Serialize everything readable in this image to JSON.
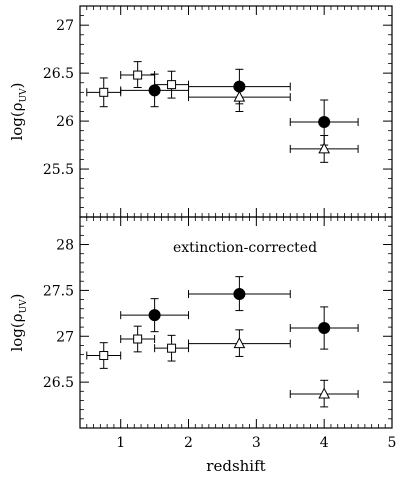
{
  "chart_data": [
    {
      "type": "scatter",
      "title": "",
      "xlabel": "",
      "ylabel": "log(ρ_UV)",
      "ylabel_main": "log(ρ",
      "ylabel_sub": "UV",
      "ylabel_close": ")",
      "xlim": [
        0.4,
        5.0
      ],
      "ylim": [
        25.0,
        27.2
      ],
      "yticks": [
        25.5,
        26,
        26.5,
        27
      ],
      "ytick_labels": [
        "25.5",
        "26",
        "26.5",
        "27"
      ],
      "annotation": "",
      "series": [
        {
          "marker": "filled-circle",
          "points": [
            {
              "x": 1.5,
              "y": 26.32,
              "xlo": 1.0,
              "xhi": 2.0,
              "ylo": 26.15,
              "yhi": 26.49
            },
            {
              "x": 2.75,
              "y": 26.36,
              "xlo": 2.0,
              "xhi": 3.5,
              "ylo": 26.18,
              "yhi": 26.54
            },
            {
              "x": 4.0,
              "y": 25.99,
              "xlo": 3.5,
              "xhi": 4.5,
              "ylo": 25.75,
              "yhi": 26.22
            }
          ]
        },
        {
          "marker": "open-square",
          "points": [
            {
              "x": 0.75,
              "y": 26.3,
              "xlo": 0.5,
              "xhi": 1.0,
              "ylo": 26.15,
              "yhi": 26.45
            },
            {
              "x": 1.25,
              "y": 26.48,
              "xlo": 1.0,
              "xhi": 1.5,
              "ylo": 26.35,
              "yhi": 26.62
            },
            {
              "x": 1.75,
              "y": 26.38,
              "xlo": 1.5,
              "xhi": 2.0,
              "ylo": 26.24,
              "yhi": 26.52
            }
          ]
        },
        {
          "marker": "open-triangle",
          "points": [
            {
              "x": 2.75,
              "y": 26.25,
              "xlo": 2.0,
              "xhi": 3.5,
              "ylo": 26.1,
              "yhi": 26.4
            },
            {
              "x": 4.0,
              "y": 25.71,
              "xlo": 3.5,
              "xhi": 4.5,
              "ylo": 25.57,
              "yhi": 25.85
            }
          ]
        }
      ]
    },
    {
      "type": "scatter",
      "title": "",
      "xlabel": "redshift",
      "ylabel": "log(ρ_UV)",
      "ylabel_main": "log(ρ",
      "ylabel_sub": "UV",
      "ylabel_close": ")",
      "xlim": [
        0.4,
        5.0
      ],
      "ylim": [
        26.0,
        28.3
      ],
      "xticks": [
        1,
        2,
        3,
        4,
        5
      ],
      "xtick_labels": [
        "1",
        "2",
        "3",
        "4",
        "5"
      ],
      "yticks": [
        26.5,
        27,
        27.5,
        28
      ],
      "ytick_labels": [
        "26.5",
        "27",
        "27.5",
        "28"
      ],
      "annotation": "extinction-corrected",
      "series": [
        {
          "marker": "filled-circle",
          "points": [
            {
              "x": 1.5,
              "y": 27.23,
              "xlo": 1.0,
              "xhi": 2.0,
              "ylo": 27.05,
              "yhi": 27.41
            },
            {
              "x": 2.75,
              "y": 27.46,
              "xlo": 2.0,
              "xhi": 3.5,
              "ylo": 27.28,
              "yhi": 27.65
            },
            {
              "x": 4.0,
              "y": 27.09,
              "xlo": 3.5,
              "xhi": 4.5,
              "ylo": 26.86,
              "yhi": 27.32
            }
          ]
        },
        {
          "marker": "open-square",
          "points": [
            {
              "x": 0.75,
              "y": 26.79,
              "xlo": 0.5,
              "xhi": 1.0,
              "ylo": 26.65,
              "yhi": 26.93
            },
            {
              "x": 1.25,
              "y": 26.97,
              "xlo": 1.0,
              "xhi": 1.5,
              "ylo": 26.83,
              "yhi": 27.11
            },
            {
              "x": 1.75,
              "y": 26.87,
              "xlo": 1.5,
              "xhi": 2.0,
              "ylo": 26.73,
              "yhi": 27.01
            }
          ]
        },
        {
          "marker": "open-triangle",
          "points": [
            {
              "x": 2.75,
              "y": 26.92,
              "xlo": 2.0,
              "xhi": 3.5,
              "ylo": 26.78,
              "yhi": 27.07
            },
            {
              "x": 4.0,
              "y": 26.37,
              "xlo": 3.5,
              "xhi": 4.5,
              "ylo": 26.23,
              "yhi": 26.52
            }
          ]
        }
      ]
    }
  ]
}
